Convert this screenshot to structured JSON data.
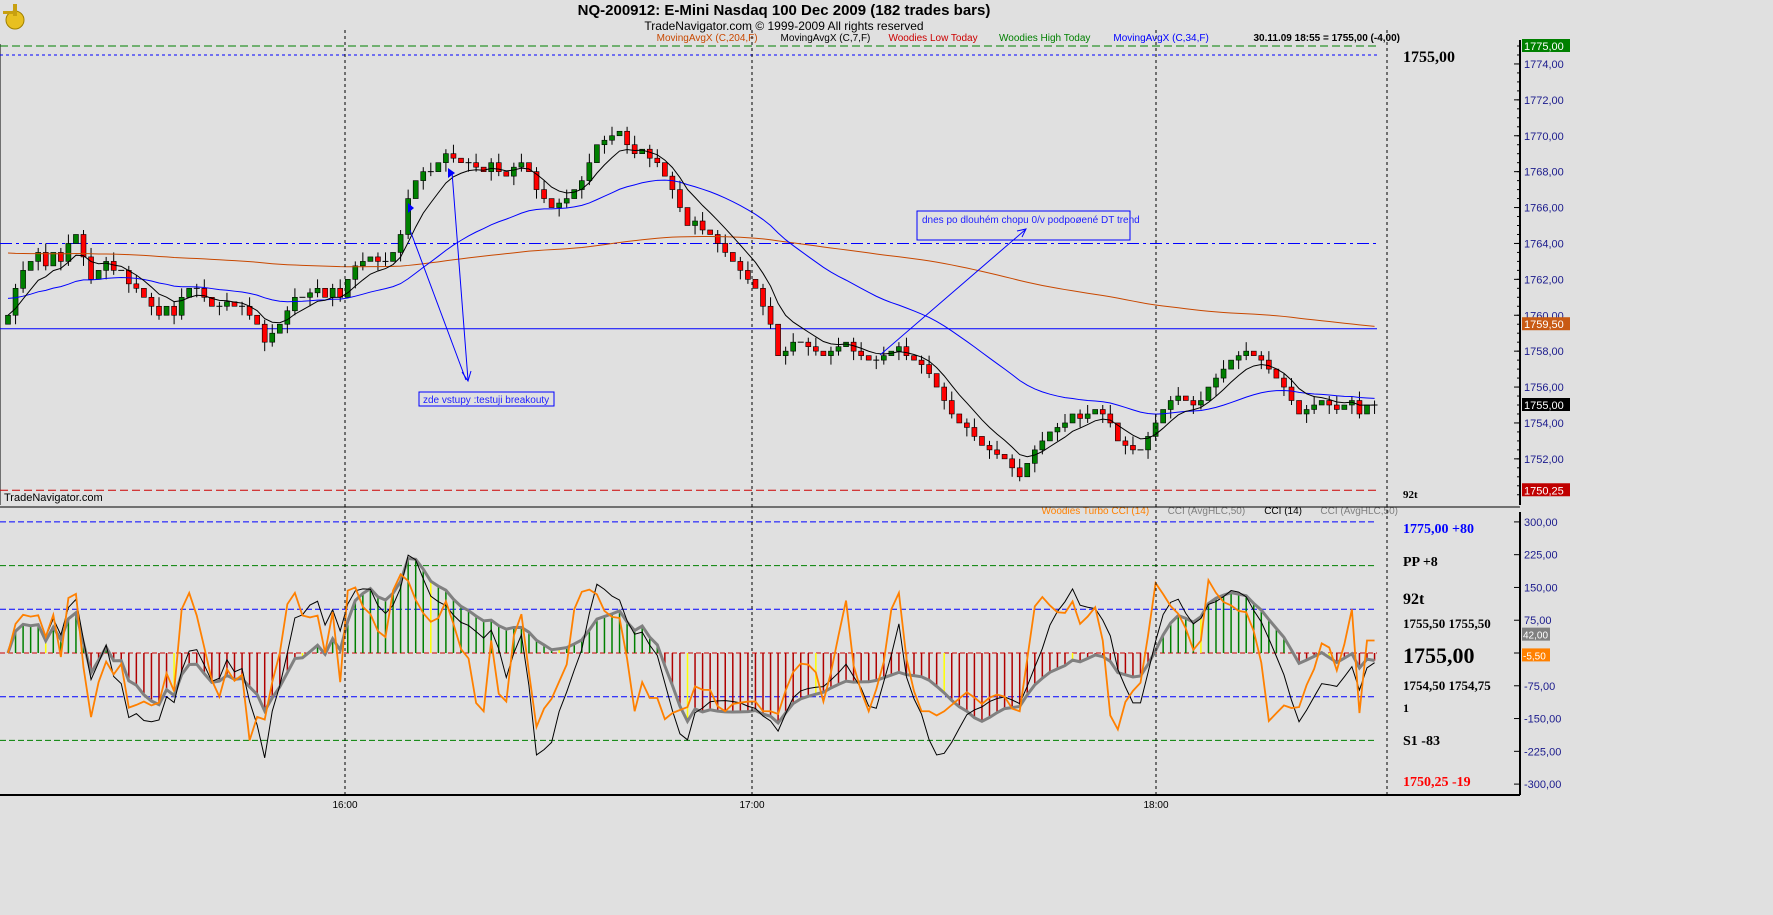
{
  "header": {
    "title": "NQ-200912:  E-Mini Nasdaq 100 Dec 2009  (182 trades bars)",
    "copyright": "TradeNavigator.com © 1999-2009 All rights reserved",
    "watermark": "TradeNavigator.com"
  },
  "legend_upper": [
    {
      "label": "MovingAvgX (C,204,F)",
      "color": "#c84800"
    },
    {
      "label": "MovingAvgX (C,7,F)",
      "color": "#000000"
    },
    {
      "label": "Woodies Low Today",
      "color": "#cc0000"
    },
    {
      "label": "Woodies High Today",
      "color": "#008000"
    },
    {
      "label": "MovingAvgX (C,34,F)",
      "color": "#0000ff"
    },
    {
      "label": "30.11.09 18:55 = 1755,00 (-4,00)",
      "color": "#000000"
    }
  ],
  "legend_lower": [
    {
      "label": "Woodies Turbo CCI (14)",
      "color": "#ff8000"
    },
    {
      "label": "CCI (AvgHLC,50)",
      "color": "#808080"
    },
    {
      "label": "CCI (14)",
      "color": "#000000"
    },
    {
      "label": "CCI (AvgHLC,50)",
      "color": "#808080"
    }
  ],
  "annotations": [
    {
      "text": "zde vstupy :testuji breakouty"
    },
    {
      "text": "dnes po dlouhém chopu 0/v podpoøené DT trend"
    }
  ],
  "side_panel": {
    "upper_price": "1755,00",
    "upper_ticks": "92t",
    "lines": [
      {
        "text": "1775,00 +80",
        "color": "#0000ff"
      },
      {
        "text": "PP +8",
        "color": "#000000"
      },
      {
        "text": "92t",
        "color": "#000000"
      },
      {
        "text": "1755,50   1755,50",
        "color": "#000000"
      },
      {
        "text": "1755,00",
        "color": "#000000"
      },
      {
        "text": "1754,50   1754,75",
        "color": "#000000"
      },
      {
        "text": "1",
        "color": "#000000"
      },
      {
        "text": "S1 -83",
        "color": "#000000"
      },
      {
        "text": "1750,25 -19",
        "color": "#ff0000"
      }
    ]
  },
  "chart_data": [
    {
      "type": "candlestick",
      "title": "NQ-200912:  E-Mini Nasdaq 100 Dec 2009  (182 trades bars)",
      "y_ticks": [
        "1774,00",
        "1772,00",
        "1770,00",
        "1768,00",
        "1766,00",
        "1764,00",
        "1762,00",
        "1760,00",
        "1758,00",
        "1756,00",
        "1754,00",
        "1752,00"
      ],
      "ylim": [
        1750,
        1775.5
      ],
      "x_ticks": [
        "16:00",
        "17:00",
        "18:00"
      ],
      "close": [
        1760,
        1761.5,
        1762.5,
        1763,
        1763.5,
        1762.75,
        1763.5,
        1763,
        1764,
        1764.5,
        1763.25,
        1762,
        1762.5,
        1763,
        1762.5,
        1762.5,
        1761.75,
        1761.5,
        1761,
        1760.5,
        1760,
        1760.5,
        1760,
        1761,
        1761.5,
        1761.5,
        1761,
        1760.5,
        1760.5,
        1760.75,
        1760.5,
        1760.5,
        1760,
        1759.5,
        1758.5,
        1759,
        1759.5,
        1760.25,
        1761,
        1761,
        1761.25,
        1761.5,
        1761,
        1761.5,
        1761,
        1762,
        1762.75,
        1763,
        1763.25,
        1763,
        1763,
        1763.5,
        1764.5,
        1766.5,
        1767.5,
        1768,
        1768,
        1768.5,
        1769,
        1768.75,
        1768.5,
        1768.5,
        1768.25,
        1768,
        1768.5,
        1768,
        1767.75,
        1768.25,
        1768.5,
        1768,
        1767,
        1766.5,
        1766,
        1766.25,
        1766.5,
        1767,
        1767.5,
        1768.5,
        1769.5,
        1769.75,
        1770,
        1770.25,
        1769.5,
        1769,
        1769.25,
        1768.75,
        1768.5,
        1767.75,
        1767,
        1766,
        1765,
        1765.25,
        1764.75,
        1764.5,
        1764,
        1763.5,
        1763,
        1762.5,
        1762,
        1761.5,
        1760.5,
        1759.5,
        1757.75,
        1758,
        1758.5,
        1758.5,
        1758.25,
        1758,
        1757.75,
        1758,
        1758.25,
        1758.5,
        1758,
        1757.75,
        1757.5,
        1757.5,
        1757.75,
        1758,
        1758.25,
        1757.75,
        1757.5,
        1757.25,
        1756.75,
        1756,
        1755.25,
        1754.5,
        1754,
        1753.75,
        1753.25,
        1752.75,
        1752.5,
        1752.25,
        1752,
        1751.5,
        1751,
        1751.75,
        1752.5,
        1753,
        1753.5,
        1753.75,
        1754,
        1754.5,
        1754.25,
        1754.5,
        1754.75,
        1754.5,
        1754,
        1753,
        1752.75,
        1752.5,
        1752.5,
        1753.25,
        1754,
        1754.75,
        1755.25,
        1755.5,
        1755.25,
        1755,
        1755.25,
        1756,
        1756.5,
        1757,
        1757.5,
        1757.75,
        1758,
        1757.75,
        1757.5,
        1757,
        1756.5,
        1756,
        1755.25,
        1754.5,
        1754.75,
        1755,
        1755.25,
        1755,
        1754.75,
        1755,
        1755.25,
        1754.5,
        1755,
        1755
      ],
      "levels": [
        {
          "name": "Woodies High Today",
          "value": 1775.0,
          "color": "#008000",
          "style": "dashed"
        },
        {
          "value": 1774.5,
          "color": "#0000ff",
          "style": "dotted"
        },
        {
          "value": 1764.0,
          "color": "#0000ff",
          "style": "dashdot"
        },
        {
          "value": 1759.25,
          "color": "#0000ff",
          "style": "solid"
        },
        {
          "name": "Woodies Low Today",
          "value": 1750.25,
          "color": "#cc0000",
          "style": "dashed"
        }
      ],
      "price_markers": [
        {
          "text": "1775,00",
          "value": 1775.0,
          "bg": "#008000"
        },
        {
          "text": "1759,50",
          "value": 1759.5,
          "bg": "#c85a14"
        },
        {
          "text": "1755,00",
          "value": 1755.0,
          "bg": "#000000"
        },
        {
          "text": "1750,25",
          "value": 1750.25,
          "bg": "#c00000"
        }
      ],
      "colors": {
        "up": "#008000",
        "down": "#ff0000",
        "ma7": "#000000",
        "ma34": "#0000ff",
        "ma204": "#c84800"
      }
    },
    {
      "type": "line+histogram",
      "y_ticks": [
        "300,00",
        "225,00",
        "150,00",
        "75,00",
        "-75,00",
        "-150,00",
        "-225,00",
        "-300,00"
      ],
      "ylim": [
        -310,
        310
      ],
      "levels": [
        {
          "value": 300,
          "color": "#0000ff"
        },
        {
          "value": 200,
          "color": "#008000"
        },
        {
          "value": 100,
          "color": "#0000ff"
        },
        {
          "value": -100,
          "color": "#0000ff"
        },
        {
          "value": -200,
          "color": "#008000"
        }
      ],
      "value_markers": [
        {
          "text": "42,00",
          "value": 42,
          "bg": "#808080"
        },
        {
          "text": "-5,50",
          "value": -5.5,
          "bg": "#ff8000"
        }
      ]
    }
  ]
}
